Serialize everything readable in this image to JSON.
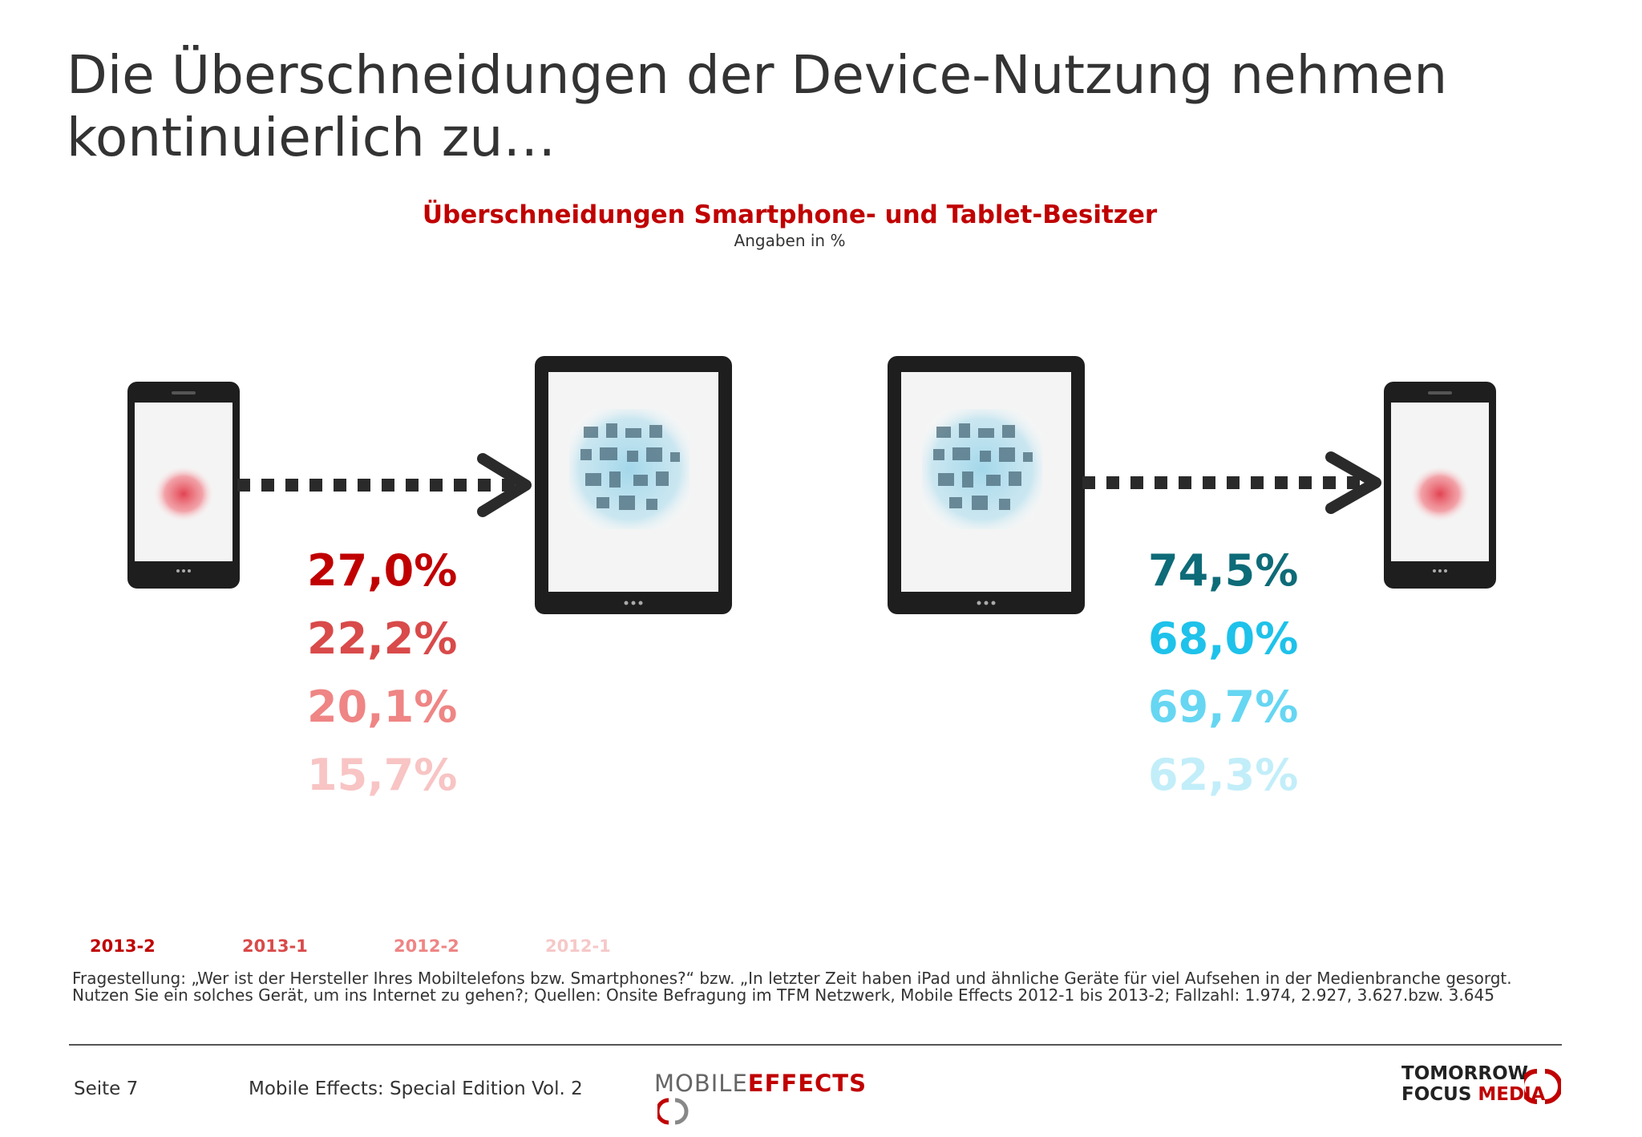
{
  "slide": {
    "title": "Die Überschneidungen der Device-Nutzung nehmen kontinuierlich zu…"
  },
  "chart": {
    "heading": "Überschneidungen Smartphone- und Tablet-Besitzer",
    "subheading": "Angaben in %"
  },
  "chart_data": {
    "type": "table",
    "title": "Überschneidungen Smartphone- und Tablet-Besitzer",
    "unit": "Angaben in %",
    "categories": [
      "2013-2",
      "2013-1",
      "2012-2",
      "2012-1"
    ],
    "series": [
      {
        "values": [
          27.0,
          22.2,
          20.1,
          15.7
        ],
        "labels": [
          "27,0%",
          "22,2%",
          "20,1%",
          "15,7%"
        ],
        "colors": [
          "#c00000",
          "#d94a4a",
          "#ef8585",
          "#f8c4c4"
        ]
      },
      {
        "values": [
          74.5,
          68.0,
          69.7,
          62.3
        ],
        "labels": [
          "74,5%",
          "68,0%",
          "69,7%",
          "62,3%"
        ],
        "colors": [
          "#0e6b78",
          "#1ec2ea",
          "#66d6f2",
          "#c2eef9"
        ]
      }
    ],
    "legend_colors": [
      "#c00000",
      "#d94a4a",
      "#ef8585",
      "#f6c8c8"
    ]
  },
  "devices": {
    "left_source_icon": "smartphone-icon",
    "left_target_icon": "tablet-icon",
    "right_source_icon": "tablet-icon",
    "right_target_icon": "smartphone-icon",
    "arrow_icon": "dotted-arrow-icon"
  },
  "footnote": {
    "text": "Fragestellung: „Wer ist der Hersteller Ihres Mobiltelefons bzw. Smartphones?“ bzw. „In letzter Zeit haben iPad und ähnliche Geräte für viel Aufsehen in der Medienbranche gesorgt. Nutzen Sie ein solches Gerät, um ins Internet zu gehen?; Quellen: Onsite Befragung im TFM Netzwerk, Mobile Effects 2012-1 bis 2013-2; Fallzahl: 1.974, 2.927, 3.627.bzw. 3.645"
  },
  "footer": {
    "page": "Seite 7",
    "edition": "Mobile Effects: Special Edition Vol. 2",
    "logo_mobile": "MOBILE",
    "logo_effects": "EFFECTS",
    "tfm_line1": "TOMORROW",
    "tfm_line2a": "FOCUS",
    "tfm_line2b": "MEDIA"
  }
}
